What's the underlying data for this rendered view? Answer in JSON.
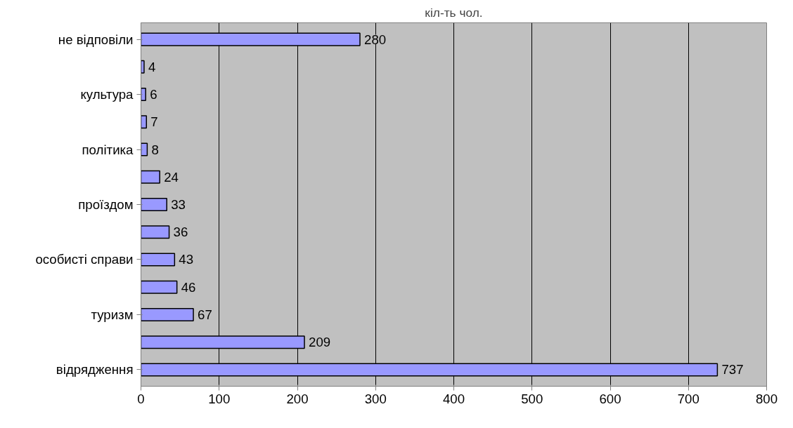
{
  "chart_data": {
    "type": "bar",
    "orientation": "horizontal",
    "title": "кіл-ть чол.",
    "categories": [
      "не відповіли",
      null,
      "культура",
      null,
      "політика",
      null,
      "проїздом",
      null,
      "особисті справи",
      null,
      "туризм",
      null,
      "відрядження"
    ],
    "values": [
      280,
      4,
      6,
      7,
      8,
      24,
      33,
      36,
      43,
      46,
      67,
      209,
      737
    ],
    "color": "#9999ff",
    "xlim": [
      0,
      800
    ],
    "xticks": [
      0,
      100,
      200,
      300,
      400,
      500,
      600,
      700,
      800
    ],
    "grid": "x",
    "data_labels": true
  }
}
